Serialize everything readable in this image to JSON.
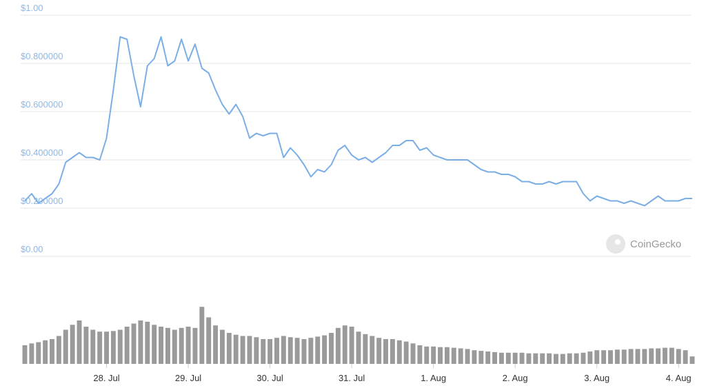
{
  "chart_data": {
    "type": "line",
    "watermark": "CoinGecko",
    "color": "#7aaee6",
    "grid": true,
    "xlim": [
      0,
      98
    ],
    "xticks": [
      {
        "value": 12,
        "label": "28. Jul"
      },
      {
        "value": 24,
        "label": "29. Jul"
      },
      {
        "value": 36,
        "label": "30. Jul"
      },
      {
        "value": 48,
        "label": "31. Jul"
      },
      {
        "value": 60,
        "label": "1. Aug"
      },
      {
        "value": 72,
        "label": "2. Aug"
      },
      {
        "value": 84,
        "label": "3. Aug"
      },
      {
        "value": 96,
        "label": "4. Aug"
      }
    ],
    "ylim": [
      0,
      1
    ],
    "yticks": [
      {
        "value": 0,
        "label": "$0.00"
      },
      {
        "value": 0.2,
        "label": "$0.200000"
      },
      {
        "value": 0.4,
        "label": "$0.400000"
      },
      {
        "value": 0.6,
        "label": "$0.600000"
      },
      {
        "value": 0.8,
        "label": "$0.800000"
      },
      {
        "value": 1,
        "label": "$1.00"
      }
    ],
    "values": [
      0.23,
      0.26,
      0.22,
      0.24,
      0.26,
      0.3,
      0.39,
      0.41,
      0.43,
      0.41,
      0.41,
      0.4,
      0.49,
      0.69,
      0.91,
      0.9,
      0.75,
      0.62,
      0.79,
      0.82,
      0.91,
      0.79,
      0.81,
      0.9,
      0.81,
      0.88,
      0.78,
      0.76,
      0.69,
      0.63,
      0.59,
      0.63,
      0.58,
      0.49,
      0.51,
      0.5,
      0.51,
      0.51,
      0.41,
      0.45,
      0.42,
      0.38,
      0.33,
      0.36,
      0.35,
      0.38,
      0.44,
      0.46,
      0.42,
      0.4,
      0.41,
      0.39,
      0.41,
      0.43,
      0.46,
      0.46,
      0.48,
      0.48,
      0.44,
      0.45,
      0.42,
      0.41,
      0.4,
      0.4,
      0.4,
      0.4,
      0.38,
      0.36,
      0.35,
      0.35,
      0.34,
      0.34,
      0.33,
      0.31,
      0.31,
      0.3,
      0.3,
      0.31,
      0.3,
      0.31,
      0.31,
      0.31,
      0.26,
      0.23,
      0.25,
      0.24,
      0.23,
      0.23,
      0.22,
      0.23,
      0.22,
      0.21,
      0.23,
      0.25,
      0.23,
      0.23,
      0.23,
      0.24,
      0.24
    ],
    "volume": {
      "color": "#9a9a9a",
      "ylim": [
        0,
        100
      ],
      "values": [
        30,
        33,
        35,
        38,
        40,
        45,
        55,
        63,
        70,
        60,
        55,
        52,
        52,
        53,
        55,
        60,
        65,
        70,
        68,
        63,
        60,
        58,
        55,
        58,
        60,
        58,
        92,
        75,
        62,
        55,
        50,
        47,
        45,
        45,
        43,
        40,
        40,
        42,
        45,
        43,
        42,
        40,
        42,
        44,
        46,
        50,
        58,
        62,
        60,
        52,
        48,
        45,
        42,
        40,
        40,
        38,
        36,
        33,
        30,
        28,
        28,
        27,
        27,
        26,
        25,
        24,
        22,
        21,
        20,
        19,
        18,
        18,
        18,
        18,
        17,
        17,
        17,
        17,
        16,
        16,
        17,
        17,
        18,
        20,
        22,
        22,
        22,
        23,
        23,
        24,
        24,
        24,
        25,
        25,
        26,
        26,
        24,
        22,
        12
      ]
    }
  }
}
